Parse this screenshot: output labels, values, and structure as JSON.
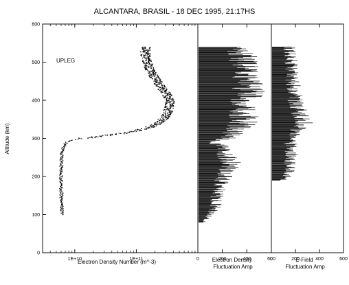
{
  "figure": {
    "title": "ALCANTARA, BRASIL - 18 DEC 1995, 21:17HS",
    "ylabel": "Altitude (km)",
    "annotation": "UPLEG",
    "ink_color": "#111111"
  },
  "chart_data": [
    {
      "type": "scatter",
      "name": "electron-density-profile",
      "xlabel": "Electron Density Number (m^-3)",
      "xscale": "log",
      "xlim": [
        3000000000.0,
        1000000000000.0
      ],
      "ylim": [
        0,
        600
      ],
      "xtick_labels": [
        "1E+10",
        "1E+11"
      ],
      "xtick_values": [
        10000000000.0,
        100000000000.0
      ],
      "ytick_labels": [
        "0",
        "100",
        "200",
        "300",
        "400",
        "500",
        "600"
      ],
      "ytick_values": [
        0,
        100,
        200,
        300,
        400,
        500,
        600
      ],
      "profile": {
        "altitude_km": [
          100,
          120,
          150,
          180,
          200,
          220,
          240,
          260,
          275,
          285,
          290,
          295,
          300,
          305,
          310,
          315,
          320,
          325,
          330,
          335,
          340,
          345,
          350,
          360,
          370,
          380,
          390,
          400,
          410,
          420,
          430,
          440,
          450,
          460,
          470,
          480,
          490,
          500,
          510,
          520,
          530,
          540
        ],
        "density_m3": [
          6300000000.0,
          6100000000.0,
          6100000000.0,
          6000000000.0,
          6000000000.0,
          6000000000.0,
          6100000000.0,
          6200000000.0,
          6500000000.0,
          7000000000.0,
          7500000000.0,
          8300000000.0,
          13000000000.0,
          25000000000.0,
          42000000000.0,
          70000000000.0,
          100000000000.0,
          130000000000.0,
          170000000000.0,
          205000000000.0,
          230000000000.0,
          250000000000.0,
          275000000000.0,
          305000000000.0,
          330000000000.0,
          350000000000.0,
          360000000000.0,
          350000000000.0,
          330000000000.0,
          300000000000.0,
          270000000000.0,
          245000000000.0,
          220000000000.0,
          200000000000.0,
          185000000000.0,
          170000000000.0,
          160000000000.0,
          150000000000.0,
          145000000000.0,
          142000000000.0,
          142000000000.0,
          145000000000.0
        ]
      }
    },
    {
      "type": "area",
      "name": "electron-density-fluctuation",
      "xlabel": "Electron Density Fluctuation Amp",
      "xlim": [
        0,
        600
      ],
      "ylim": [
        0,
        600
      ],
      "xtick_labels": [
        "0",
        "200",
        "400",
        "600"
      ],
      "xtick_values": [
        0,
        200,
        400,
        600
      ],
      "envelope": {
        "altitude_km": [
          80,
          100,
          110,
          120,
          140,
          150,
          160,
          180,
          200,
          220,
          240,
          250,
          260,
          270,
          280,
          290,
          300,
          310,
          320,
          330,
          340,
          350,
          360,
          370,
          380,
          390,
          400,
          420,
          440,
          460,
          480,
          500,
          520,
          540
        ],
        "amplitude": [
          60,
          120,
          150,
          180,
          180,
          190,
          200,
          220,
          260,
          300,
          330,
          300,
          270,
          250,
          230,
          120,
          280,
          330,
          380,
          420,
          450,
          460,
          450,
          440,
          460,
          470,
          480,
          500,
          500,
          490,
          480,
          460,
          440,
          420
        ]
      }
    },
    {
      "type": "area",
      "name": "e-field-fluctuation",
      "xlabel": "E-Field Fluctuation Amp",
      "xlim": [
        0,
        600
      ],
      "ylim": [
        0,
        600
      ],
      "xtick_labels": [
        "0",
        "200",
        "400",
        "600"
      ],
      "xtick_values": [
        0,
        200,
        400,
        600
      ],
      "envelope": {
        "altitude_km": [
          190,
          200,
          220,
          240,
          260,
          280,
          290,
          300,
          310,
          320,
          330,
          340,
          350,
          360,
          370,
          380,
          390,
          400,
          420,
          440,
          460,
          480,
          500,
          520,
          540
        ],
        "amplitude": [
          120,
          160,
          180,
          190,
          200,
          200,
          190,
          200,
          230,
          270,
          310,
          330,
          320,
          300,
          280,
          260,
          250,
          240,
          230,
          220,
          210,
          200,
          200,
          190,
          180
        ]
      }
    }
  ]
}
